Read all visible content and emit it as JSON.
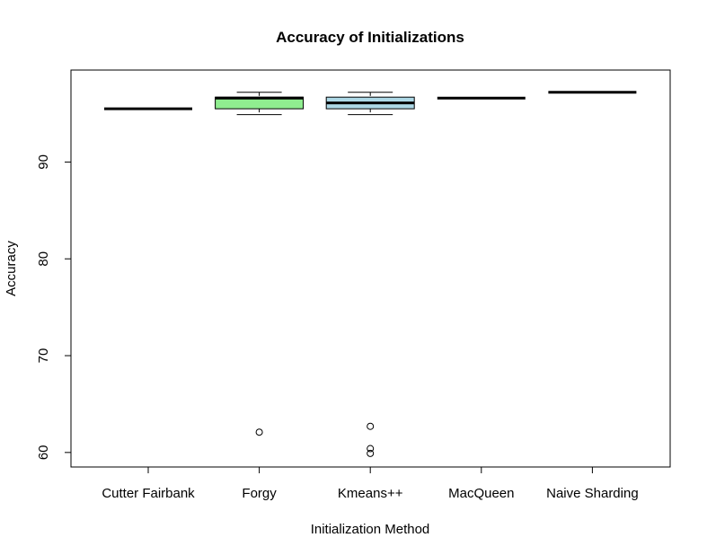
{
  "chart_data": {
    "type": "boxplot",
    "title": "Accuracy of Initializations",
    "xlabel": "Initialization Method",
    "ylabel": "Accuracy",
    "ylim": [
      58.5,
      99.5
    ],
    "yticks": [
      60,
      70,
      80,
      90
    ],
    "grid": false,
    "legend": "none",
    "categories": [
      "Cutter Fairbank",
      "Forgy",
      "Kmeans++",
      "MacQueen",
      "Naive Sharding"
    ],
    "boxes": [
      {
        "category": "Cutter Fairbank",
        "min": 95.5,
        "q1": 95.5,
        "median": 95.5,
        "q3": 95.5,
        "max": 95.5,
        "outliers": [],
        "fill": "#ffffff"
      },
      {
        "category": "Forgy",
        "min": 94.9,
        "q1": 95.5,
        "median": 96.6,
        "q3": 96.7,
        "max": 97.2,
        "outliers": [
          62.1
        ],
        "fill": "#90ee90"
      },
      {
        "category": "Kmeans++",
        "min": 94.9,
        "q1": 95.5,
        "median": 96.1,
        "q3": 96.7,
        "max": 97.2,
        "outliers": [
          62.7,
          60.4,
          59.9
        ],
        "fill": "#add8e6"
      },
      {
        "category": "MacQueen",
        "min": 96.6,
        "q1": 96.6,
        "median": 96.6,
        "q3": 96.6,
        "max": 96.6,
        "outliers": [],
        "fill": "#ffffff"
      },
      {
        "category": "Naive Sharding",
        "min": 97.2,
        "q1": 97.2,
        "median": 97.2,
        "q3": 97.2,
        "max": 97.2,
        "outliers": [],
        "fill": "#ffffff"
      }
    ]
  }
}
